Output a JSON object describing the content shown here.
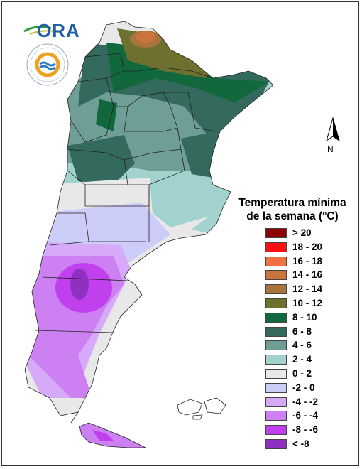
{
  "logos": {
    "ora_text": "ORA",
    "smn_name": "SERVICIO METEOROLÓGICO NACIONAL",
    "smn_country": "ARGENTINA"
  },
  "north_label": "N",
  "legend": {
    "title_line1": "Temperatura mínima",
    "title_line2": "de la semana (°C)",
    "classes": [
      {
        "label": "> 20",
        "color": "#8b0000"
      },
      {
        "label": "18 - 20",
        "color": "#ff1010"
      },
      {
        "label": "16 - 18",
        "color": "#f07040"
      },
      {
        "label": "14 - 16",
        "color": "#c8743c"
      },
      {
        "label": "12 - 14",
        "color": "#a8743c"
      },
      {
        "label": "10 - 12",
        "color": "#6e7030"
      },
      {
        "label": "8 - 10",
        "color": "#10683c"
      },
      {
        "label": "6 - 8",
        "color": "#346a5e"
      },
      {
        "label": "4 - 6",
        "color": "#6e9e96"
      },
      {
        "label": "2 - 4",
        "color": "#a2d2ce"
      },
      {
        "label": "0 - 2",
        "color": "#e8e8e8"
      },
      {
        "label": "-2 - 0",
        "color": "#ccccf8"
      },
      {
        "label": "-4 - -2",
        "color": "#d6aaf8"
      },
      {
        "label": "-6 - -4",
        "color": "#cc80f2"
      },
      {
        "label": "-8 - -6",
        "color": "#c040ee"
      },
      {
        "label": "< -8",
        "color": "#9030c0"
      }
    ]
  }
}
